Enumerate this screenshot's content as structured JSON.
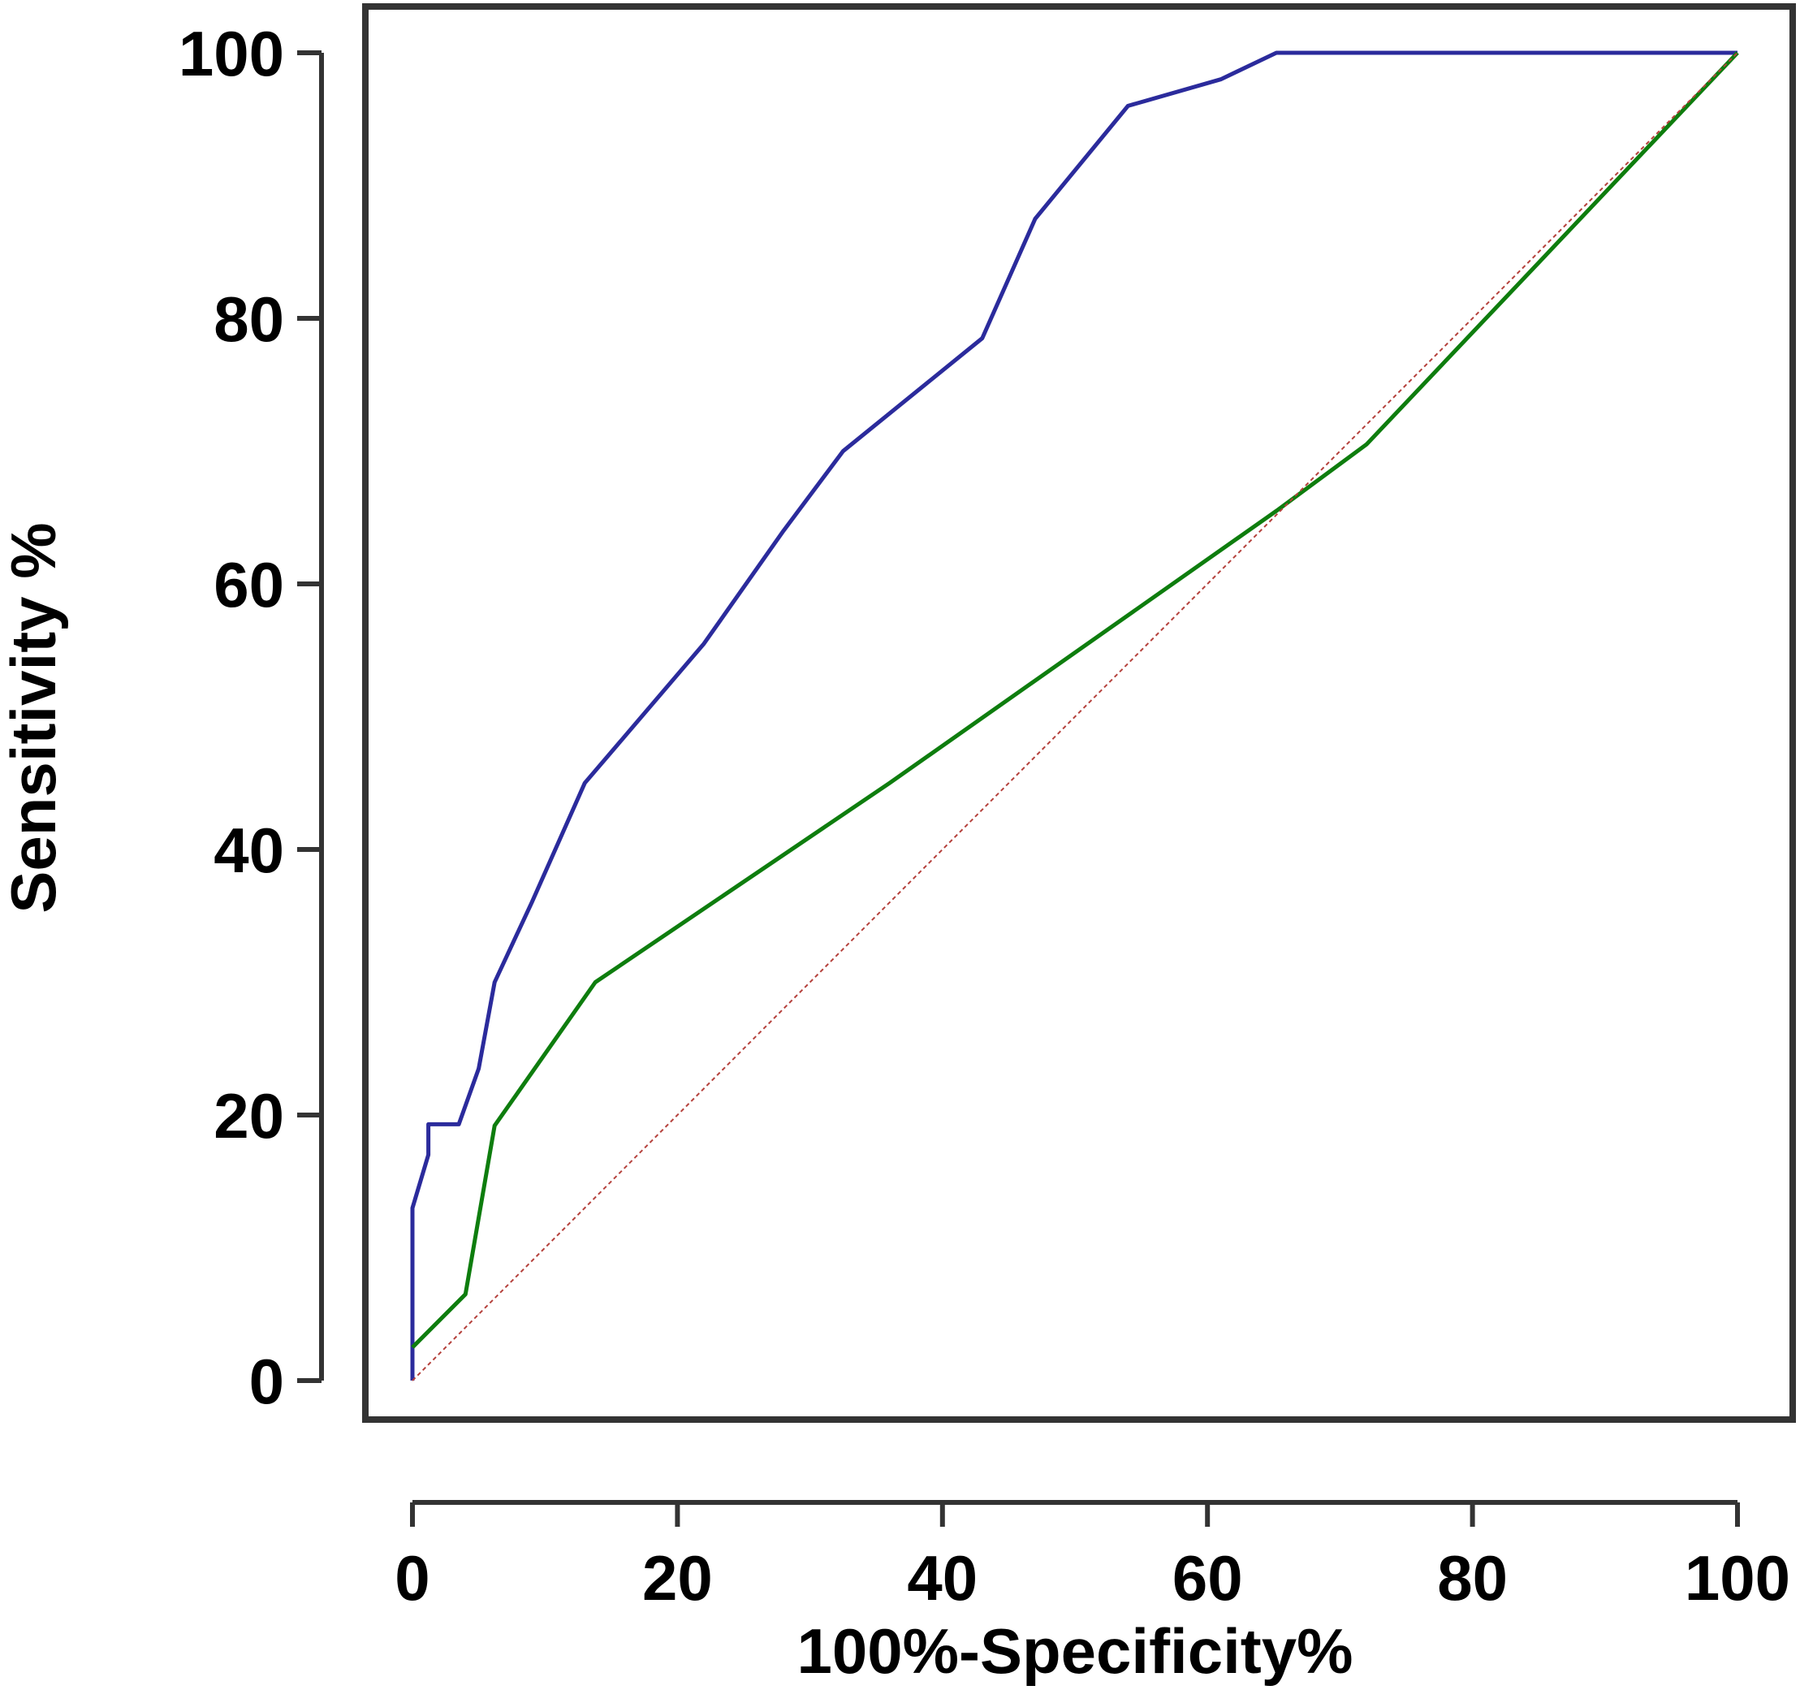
{
  "chart_data": {
    "type": "line",
    "title": "",
    "xlabel": "100%-Specificity%",
    "ylabel": "Sensitivity %",
    "xlim": [
      0,
      100
    ],
    "ylim": [
      0,
      100
    ],
    "x_ticks": [
      0,
      20,
      40,
      60,
      80,
      100
    ],
    "y_ticks": [
      0,
      20,
      40,
      60,
      80,
      100
    ],
    "x_tick_labels": [
      "0",
      "20",
      "40",
      "60",
      "80",
      "100"
    ],
    "y_tick_labels": [
      "0",
      "20",
      "40",
      "60",
      "80",
      "100"
    ],
    "grid": false,
    "legend": "none",
    "series": [
      {
        "color": "#2b2b9c",
        "style": "solid",
        "points": [
          [
            0,
            0
          ],
          [
            0,
            13
          ],
          [
            1.2,
            17
          ],
          [
            1.2,
            19.3
          ],
          [
            3.5,
            19.3
          ],
          [
            5,
            23.5
          ],
          [
            6.2,
            30
          ],
          [
            9,
            36
          ],
          [
            13,
            45
          ],
          [
            22,
            55.5
          ],
          [
            28,
            64
          ],
          [
            32.5,
            70
          ],
          [
            43,
            78.5
          ],
          [
            47,
            87.5
          ],
          [
            54,
            96
          ],
          [
            61,
            98
          ],
          [
            65.2,
            100
          ],
          [
            100,
            100
          ]
        ]
      },
      {
        "color": "#0e7d0e",
        "style": "solid",
        "points": [
          [
            0,
            2.5
          ],
          [
            4,
            6.5
          ],
          [
            6.2,
            19.2
          ],
          [
            13.8,
            30
          ],
          [
            36,
            45
          ],
          [
            65.2,
            65.5
          ],
          [
            72,
            70.5
          ],
          [
            100,
            100
          ]
        ]
      },
      {
        "color": "#b5413c",
        "style": "dotted",
        "points": [
          [
            0,
            0
          ],
          [
            100,
            100
          ]
        ]
      }
    ]
  }
}
